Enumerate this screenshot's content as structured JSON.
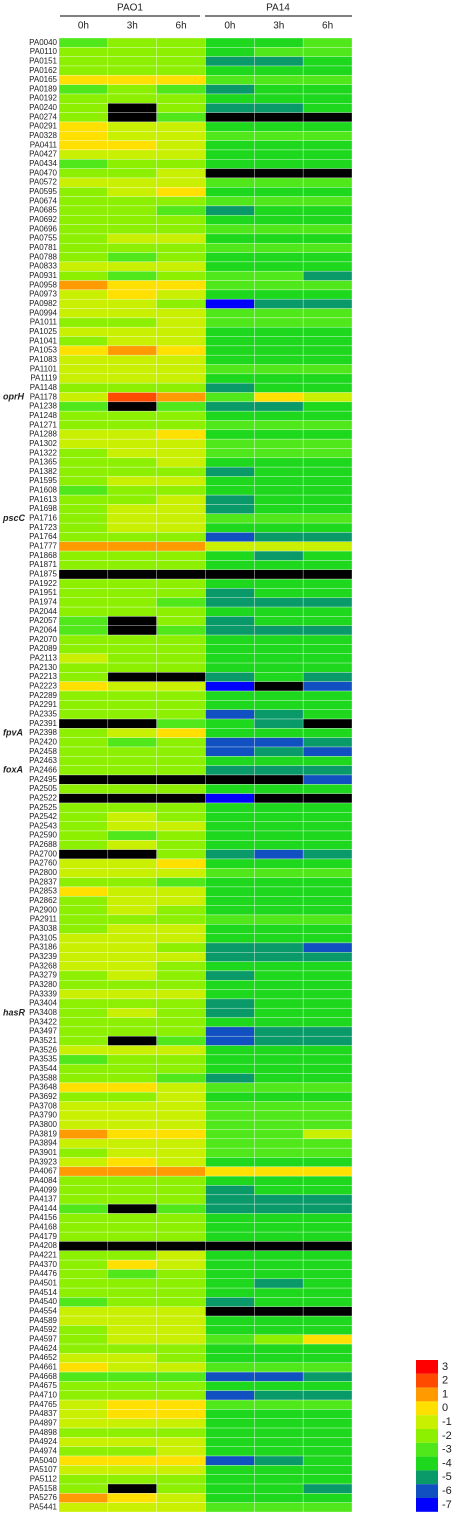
{
  "chart_data": {
    "type": "heatmap",
    "groups": [
      "PAO1",
      "PA14"
    ],
    "columns": [
      "0h",
      "3h",
      "6h",
      "0h",
      "3h",
      "6h"
    ],
    "rows": [
      "PA0040",
      "PA0110",
      "PA0151",
      "PA0162",
      "PA0165",
      "PA0189",
      "PA0192",
      "PA0240",
      "PA0274",
      "PA0291",
      "PA0328",
      "PA0411",
      "PA0427",
      "PA0434",
      "PA0470",
      "PA0572",
      "PA0595",
      "PA0674",
      "PA0685",
      "PA0692",
      "PA0696",
      "PA0755",
      "PA0781",
      "PA0788",
      "PA0833",
      "PA0931",
      "PA0958",
      "PA0973",
      "PA0982",
      "PA0994",
      "PA1011",
      "PA1025",
      "PA1041",
      "PA1053",
      "PA1083",
      "PA1101",
      "PA1119",
      "PA1148",
      "PA1178",
      "PA1238",
      "PA1248",
      "PA1271",
      "PA1288",
      "PA1302",
      "PA1322",
      "PA1365",
      "PA1382",
      "PA1595",
      "PA1608",
      "PA1613",
      "PA1698",
      "PA1716",
      "PA1723",
      "PA1764",
      "PA1777",
      "PA1868",
      "PA1871",
      "PA1875",
      "PA1922",
      "PA1951",
      "PA1974",
      "PA2044",
      "PA2057",
      "PA2064",
      "PA2070",
      "PA2089",
      "PA2113",
      "PA2130",
      "PA2213",
      "PA2223",
      "PA2289",
      "PA2291",
      "PA2335",
      "PA2391",
      "PA2398",
      "PA2420",
      "PA2458",
      "PA2463",
      "PA2466",
      "PA2495",
      "PA2505",
      "PA2522",
      "PA2525",
      "PA2542",
      "PA2543",
      "PA2590",
      "PA2688",
      "PA2700",
      "PA2760",
      "PA2800",
      "PA2837",
      "PA2853",
      "PA2862",
      "PA2900",
      "PA2911",
      "PA3038",
      "PA3105",
      "PA3186",
      "PA3239",
      "PA3268",
      "PA3279",
      "PA3280",
      "PA3339",
      "PA3404",
      "PA3408",
      "PA3422",
      "PA3497",
      "PA3521",
      "PA3526",
      "PA3535",
      "PA3544",
      "PA3588",
      "PA3648",
      "PA3692",
      "PA3708",
      "PA3790",
      "PA3800",
      "PA3819",
      "PA3894",
      "PA3901",
      "PA3923",
      "PA4067",
      "PA4084",
      "PA4099",
      "PA4137",
      "PA4144",
      "PA4156",
      "PA4168",
      "PA4179",
      "PA4208",
      "PA4221",
      "PA4370",
      "PA4476",
      "PA4501",
      "PA4514",
      "PA4540",
      "PA4554",
      "PA4589",
      "PA4592",
      "PA4597",
      "PA4624",
      "PA4652",
      "PA4661",
      "PA4668",
      "PA4675",
      "PA4710",
      "PA4765",
      "PA4837",
      "PA4897",
      "PA4898",
      "PA4924",
      "PA4974",
      "PA5040",
      "PA5107",
      "PA5112",
      "PA5158",
      "PA5276",
      "PA5441"
    ],
    "values": [
      [
        -3,
        -2,
        -2,
        -4,
        -4,
        -3
      ],
      [
        -2,
        -2,
        -2,
        -4,
        -3,
        -3
      ],
      [
        -2,
        -2,
        -2,
        -5,
        -5,
        -4
      ],
      [
        -2,
        -2,
        -2,
        -4,
        -4,
        -4
      ],
      [
        0,
        0,
        0,
        -3,
        -3,
        -3
      ],
      [
        -3,
        -2,
        -3,
        -5,
        -4,
        -4
      ],
      [
        -2,
        -2,
        -2,
        -4,
        -4,
        -4
      ],
      [
        -2,
        null,
        -2,
        -5,
        -5,
        -4
      ],
      [
        -2,
        null,
        -3,
        null,
        null,
        null
      ],
      [
        0,
        -1,
        -1,
        -4,
        -4,
        -4
      ],
      [
        0,
        -1,
        -1,
        -3,
        -3,
        -3
      ],
      [
        0,
        0,
        -1,
        -4,
        -4,
        -4
      ],
      [
        -1,
        -1,
        -1,
        -4,
        -4,
        -4
      ],
      [
        -3,
        -2,
        -2,
        -4,
        -4,
        -4
      ],
      [
        -2,
        -2,
        -1,
        null,
        null,
        null
      ],
      [
        -1,
        -1,
        -1,
        -3,
        -3,
        -3
      ],
      [
        -2,
        -1,
        0,
        -4,
        -4,
        -4
      ],
      [
        -2,
        -2,
        -2,
        -3,
        -3,
        -3
      ],
      [
        -2,
        -2,
        -3,
        -5,
        -4,
        -4
      ],
      [
        -2,
        -2,
        -2,
        -4,
        -4,
        -4
      ],
      [
        -2,
        -2,
        -2,
        -3,
        -3,
        -3
      ],
      [
        -2,
        -1,
        -1,
        -4,
        -4,
        -4
      ],
      [
        -2,
        -2,
        -2,
        -3,
        -3,
        -3
      ],
      [
        -2,
        -3,
        -2,
        -4,
        -4,
        -4
      ],
      [
        -1,
        -1,
        -1,
        -4,
        -4,
        -4
      ],
      [
        -2,
        -3,
        -2,
        -3,
        -3,
        -5
      ],
      [
        1,
        0,
        0,
        -3,
        -3,
        -3
      ],
      [
        -1,
        0,
        -1,
        -4,
        -4,
        -4
      ],
      [
        -1,
        -1,
        -2,
        -7,
        -5,
        -5
      ],
      [
        -1,
        -1,
        -1,
        -3,
        -3,
        -3
      ],
      [
        -2,
        -2,
        -1,
        -3,
        -3,
        -3
      ],
      [
        -1,
        -1,
        -1,
        -4,
        -4,
        -4
      ],
      [
        -2,
        -1,
        -1,
        -4,
        -4,
        -4
      ],
      [
        0,
        1,
        0,
        -4,
        -4,
        -4
      ],
      [
        -1,
        -1,
        -1,
        -4,
        -4,
        -4
      ],
      [
        -1,
        -1,
        -1,
        -3,
        -3,
        -3
      ],
      [
        -1,
        -1,
        -1,
        -4,
        -4,
        -4
      ],
      [
        -2,
        -2,
        -2,
        -5,
        -4,
        -4
      ],
      [
        -1,
        2,
        1,
        -3,
        0,
        -1
      ],
      [
        -3,
        null,
        -3,
        -5,
        -5,
        -4
      ],
      [
        -2,
        -2,
        -2,
        -4,
        -4,
        -4
      ],
      [
        -2,
        -2,
        -2,
        -3,
        -3,
        -3
      ],
      [
        -1,
        -1,
        0,
        -4,
        -4,
        -4
      ],
      [
        -1,
        -1,
        -1,
        -3,
        -3,
        -3
      ],
      [
        -2,
        -1,
        -1,
        -3,
        -3,
        -3
      ],
      [
        -2,
        -2,
        -1,
        -4,
        -4,
        -4
      ],
      [
        -2,
        -2,
        -2,
        -5,
        -4,
        -4
      ],
      [
        -2,
        -1,
        -1,
        -4,
        -4,
        -4
      ],
      [
        -3,
        -2,
        -2,
        -4,
        -4,
        -4
      ],
      [
        -2,
        -2,
        -1,
        -5,
        -4,
        -4
      ],
      [
        -2,
        -1,
        -1,
        -5,
        -4,
        -4
      ],
      [
        -2,
        -1,
        -1,
        -3,
        -3,
        -3
      ],
      [
        -2,
        -1,
        -1,
        -4,
        -4,
        -4
      ],
      [
        -2,
        -2,
        -2,
        -6,
        -5,
        -5
      ],
      [
        1,
        1,
        1,
        -1,
        -1,
        -1
      ],
      [
        -2,
        -2,
        -2,
        -4,
        -5,
        -4
      ],
      [
        -2,
        -2,
        -2,
        -4,
        -4,
        -4
      ],
      [
        null,
        null,
        null,
        null,
        null,
        null
      ],
      [
        -2,
        -2,
        -2,
        -4,
        -4,
        -4
      ],
      [
        -2,
        -2,
        -2,
        -5,
        -4,
        -4
      ],
      [
        -2,
        -2,
        -3,
        -5,
        -5,
        -5
      ],
      [
        -2,
        -2,
        -2,
        -4,
        -4,
        -4
      ],
      [
        -3,
        null,
        -2,
        -5,
        -4,
        -4
      ],
      [
        -3,
        null,
        -3,
        -5,
        -5,
        -5
      ],
      [
        -2,
        -2,
        -2,
        -4,
        -4,
        -4
      ],
      [
        -2,
        -2,
        -2,
        -4,
        -4,
        -4
      ],
      [
        -1,
        -2,
        -2,
        -4,
        -4,
        -4
      ],
      [
        -2,
        -2,
        -2,
        -4,
        -4,
        -4
      ],
      [
        -2,
        null,
        null,
        -5,
        -4,
        -5
      ],
      [
        0,
        -1,
        -1,
        -7,
        null,
        -6
      ],
      [
        -2,
        -2,
        -2,
        -4,
        -4,
        -4
      ],
      [
        -2,
        -2,
        -2,
        -4,
        -4,
        -4
      ],
      [
        -2,
        -2,
        -2,
        -6,
        -5,
        -4
      ],
      [
        null,
        null,
        -3,
        -4,
        -5,
        null
      ],
      [
        -2,
        -1,
        0,
        -4,
        -4,
        -4
      ],
      [
        -2,
        -3,
        -2,
        -6,
        -6,
        -5
      ],
      [
        -2,
        -2,
        -2,
        -6,
        -5,
        -6
      ],
      [
        -2,
        -2,
        -2,
        -4,
        -4,
        -4
      ],
      [
        -2,
        -2,
        -2,
        -5,
        -5,
        -5
      ],
      [
        null,
        null,
        null,
        null,
        null,
        -6
      ],
      [
        -2,
        -2,
        -2,
        -4,
        -4,
        -4
      ],
      [
        null,
        null,
        null,
        -7,
        null,
        null
      ],
      [
        -2,
        -2,
        -2,
        -4,
        -4,
        -4
      ],
      [
        -2,
        -1,
        -2,
        -4,
        -4,
        -4
      ],
      [
        -2,
        -1,
        -1,
        -4,
        -4,
        -4
      ],
      [
        -2,
        -3,
        -2,
        -4,
        -4,
        -4
      ],
      [
        -2,
        -1,
        -2,
        -4,
        -4,
        -4
      ],
      [
        null,
        null,
        -2,
        -5,
        -6,
        -5
      ],
      [
        -1,
        -1,
        0,
        -4,
        -4,
        -4
      ],
      [
        -1,
        -1,
        -1,
        -3,
        -3,
        -3
      ],
      [
        -2,
        -2,
        -3,
        -4,
        -4,
        -4
      ],
      [
        0,
        -1,
        -1,
        -4,
        -4,
        -4
      ],
      [
        -2,
        -1,
        -1,
        -4,
        -4,
        -4
      ],
      [
        -2,
        -1,
        -2,
        -4,
        -4,
        -4
      ],
      [
        -2,
        -2,
        -2,
        -3,
        -3,
        -3
      ],
      [
        -2,
        -1,
        -1,
        -4,
        -4,
        -4
      ],
      [
        -1,
        -1,
        -1,
        -4,
        -4,
        -4
      ],
      [
        -1,
        -1,
        -2,
        -5,
        -5,
        -6
      ],
      [
        -1,
        -1,
        -1,
        -5,
        -5,
        -5
      ],
      [
        -1,
        -1,
        -2,
        -4,
        -4,
        -4
      ],
      [
        -2,
        -1,
        -2,
        -5,
        -4,
        -4
      ],
      [
        -2,
        -2,
        -2,
        -4,
        -4,
        -4
      ],
      [
        -1,
        -1,
        -1,
        -4,
        -4,
        -4
      ],
      [
        -2,
        -2,
        -2,
        -5,
        -4,
        -4
      ],
      [
        -2,
        -1,
        -2,
        -5,
        -4,
        -4
      ],
      [
        -2,
        -2,
        -2,
        -4,
        -4,
        -4
      ],
      [
        -2,
        -2,
        -2,
        -6,
        -5,
        -5
      ],
      [
        -2,
        null,
        -3,
        -6,
        -5,
        -5
      ],
      [
        -1,
        -1,
        -1,
        -4,
        -4,
        -4
      ],
      [
        -3,
        -2,
        -2,
        -4,
        -4,
        -4
      ],
      [
        -2,
        -2,
        -2,
        -4,
        -4,
        -4
      ],
      [
        -2,
        -2,
        -3,
        -5,
        -4,
        -4
      ],
      [
        0,
        0,
        -1,
        -3,
        -3,
        -3
      ],
      [
        -2,
        -2,
        -1,
        -4,
        -4,
        -4
      ],
      [
        -1,
        -1,
        -1,
        -3,
        -3,
        -3
      ],
      [
        -1,
        -1,
        -1,
        -3,
        -3,
        -3
      ],
      [
        -1,
        -1,
        -1,
        -3,
        -3,
        -3
      ],
      [
        1,
        0,
        0,
        -3,
        -3,
        -1
      ],
      [
        -1,
        -1,
        -1,
        -3,
        -3,
        -3
      ],
      [
        -2,
        -1,
        -1,
        -3,
        -3,
        -3
      ],
      [
        -1,
        0,
        -1,
        -4,
        -4,
        -4
      ],
      [
        1,
        1,
        1,
        0,
        0,
        0
      ],
      [
        -2,
        -2,
        -2,
        -4,
        -4,
        -4
      ],
      [
        -2,
        -2,
        -2,
        -5,
        -4,
        -4
      ],
      [
        -2,
        -2,
        -2,
        -5,
        -5,
        -5
      ],
      [
        -3,
        null,
        -3,
        -5,
        -5,
        -5
      ],
      [
        -2,
        -2,
        -2,
        -4,
        -4,
        -4
      ],
      [
        -2,
        -2,
        -2,
        -4,
        -4,
        -4
      ],
      [
        -2,
        -2,
        -2,
        -4,
        -4,
        -4
      ],
      [
        null,
        null,
        null,
        null,
        null,
        null
      ],
      [
        -2,
        -2,
        -1,
        -4,
        -4,
        -4
      ],
      [
        -2,
        0,
        -1,
        -4,
        -4,
        -4
      ],
      [
        -2,
        -3,
        -2,
        -4,
        -4,
        -4
      ],
      [
        -2,
        -2,
        -2,
        -4,
        -5,
        -4
      ],
      [
        -2,
        -2,
        -2,
        -4,
        -4,
        -4
      ],
      [
        -3,
        -2,
        -2,
        -5,
        -4,
        -4
      ],
      [
        -1,
        -1,
        -1,
        null,
        null,
        null
      ],
      [
        -1,
        -1,
        -1,
        -4,
        -4,
        -4
      ],
      [
        -2,
        -1,
        -1,
        -4,
        -4,
        -4
      ],
      [
        -2,
        -1,
        -1,
        -3,
        -2,
        0
      ],
      [
        -2,
        -2,
        -2,
        -4,
        -4,
        -4
      ],
      [
        -1,
        -1,
        -2,
        -4,
        -4,
        -4
      ],
      [
        0,
        -1,
        -1,
        -3,
        -3,
        -3
      ],
      [
        -3,
        -3,
        -3,
        -6,
        -6,
        -5
      ],
      [
        -2,
        -2,
        -2,
        -4,
        -4,
        -4
      ],
      [
        -2,
        -2,
        -2,
        -6,
        -5,
        -5
      ],
      [
        -1,
        0,
        0,
        -3,
        -3,
        -3
      ],
      [
        -1,
        0,
        0,
        -4,
        -4,
        -4
      ],
      [
        -1,
        -1,
        -1,
        -4,
        -4,
        -4
      ],
      [
        -2,
        -2,
        -2,
        -4,
        -4,
        -4
      ],
      [
        -1,
        -1,
        -1,
        -4,
        -4,
        -4
      ],
      [
        -2,
        -2,
        -1,
        -4,
        -4,
        -4
      ],
      [
        0,
        0,
        0,
        -6,
        -5,
        -4
      ],
      [
        -1,
        -1,
        -1,
        -4,
        -4,
        -4
      ],
      [
        -2,
        -2,
        -2,
        -4,
        -4,
        -4
      ],
      [
        -2,
        null,
        -2,
        -4,
        -4,
        -5
      ],
      [
        1,
        0,
        -1,
        -4,
        -4,
        -4
      ],
      [
        -1,
        -1,
        -1,
        -3,
        -3,
        -3
      ]
    ],
    "missing_color": "#000000",
    "annotations": [
      {
        "text": "oprH",
        "gene": "PA1178"
      },
      {
        "text": "pscC",
        "gene": "PA1716"
      },
      {
        "text": "fpvA",
        "gene": "PA2398"
      },
      {
        "text": "foxA",
        "gene": "PA2466"
      },
      {
        "text": "hasR",
        "gene": "PA3408"
      }
    ],
    "colorbar": {
      "ticks": [
        3,
        2,
        1,
        0,
        -1,
        -2,
        -3,
        -4,
        -5,
        -6,
        -7
      ],
      "colors": [
        "#ff0000",
        "#ff4a00",
        "#ff9a00",
        "#ffe000",
        "#c8f000",
        "#8cf000",
        "#50e81a",
        "#1ed81e",
        "#0a9a6a",
        "#1050c0",
        "#0000ff"
      ]
    }
  }
}
